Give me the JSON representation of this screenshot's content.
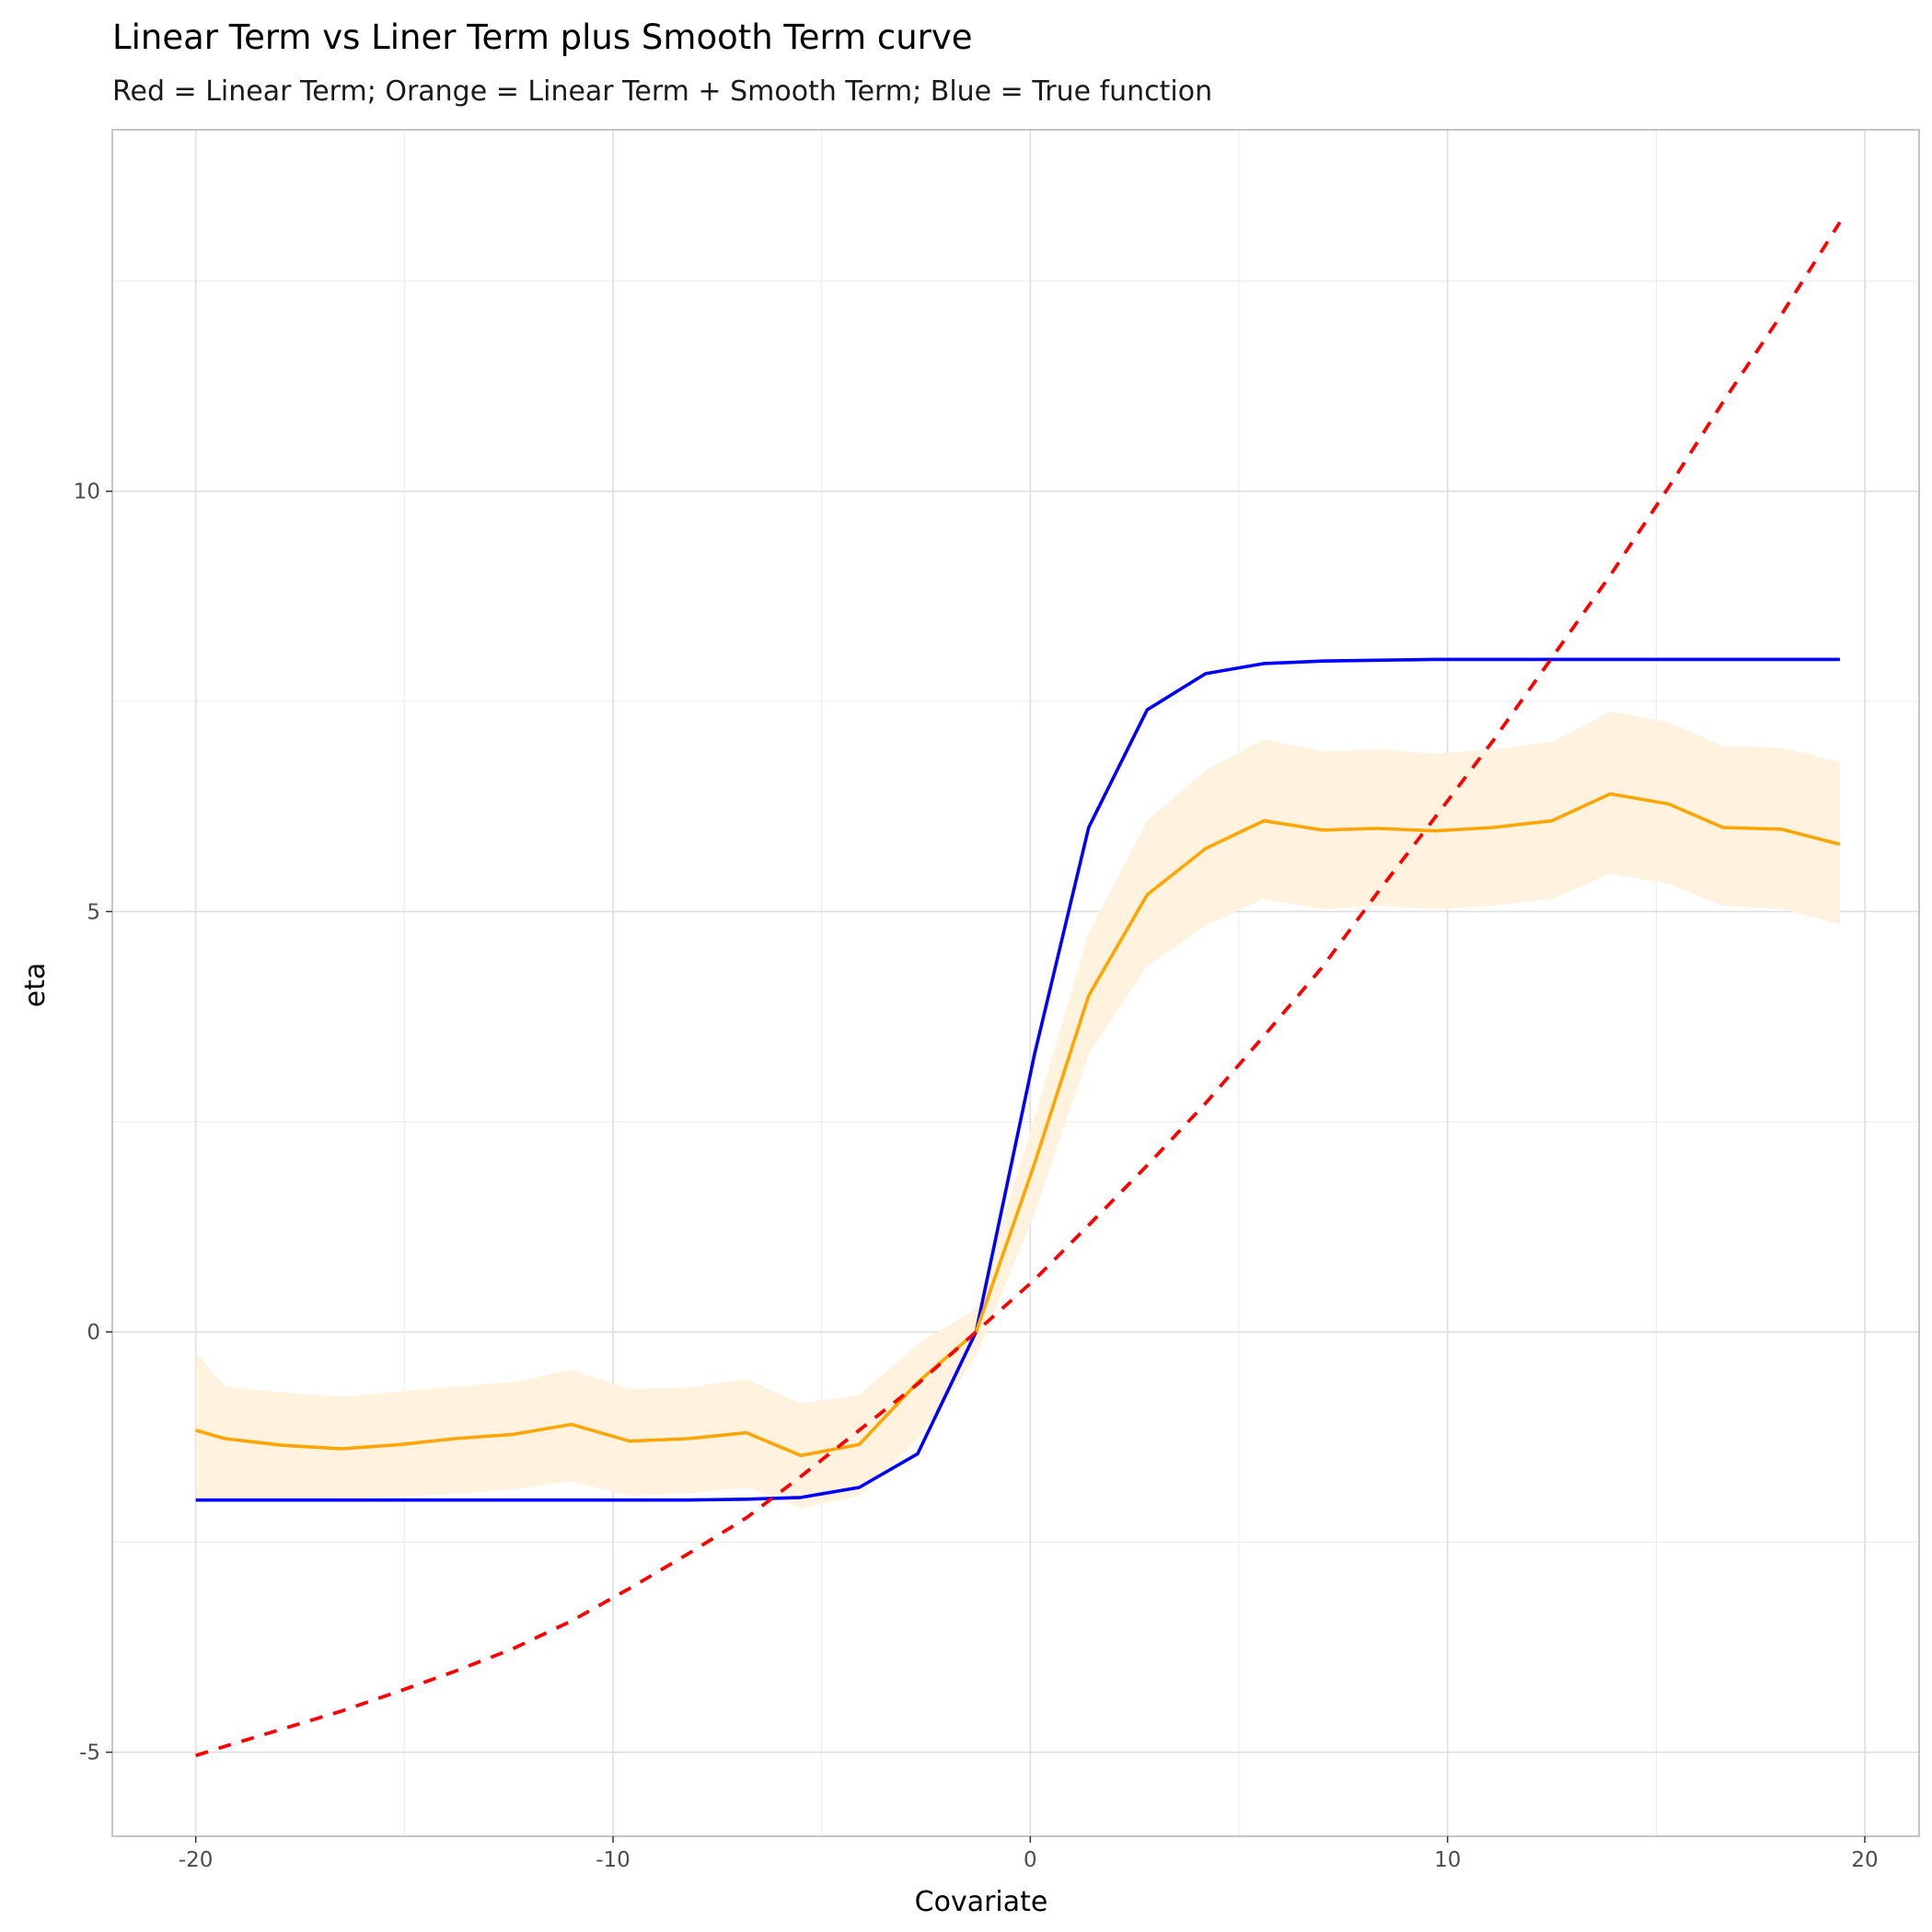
{
  "chart_data": {
    "type": "line",
    "title": "Linear Term vs Liner Term plus Smooth Term curve",
    "subtitle": "Red = Linear Term; Orange = Linear Term + Smooth Term; Blue = True function",
    "xlabel": "Covariate",
    "ylabel": "eta",
    "xlim": [
      -22,
      21.3
    ],
    "ylim": [
      -6,
      14.3
    ],
    "x_ticks": [
      -20,
      -10,
      0,
      10,
      20
    ],
    "y_ticks": [
      -5,
      0,
      5,
      10
    ],
    "x_tick_labels": [
      "-20",
      "-10",
      "0",
      "10",
      "20"
    ],
    "y_tick_labels": [
      "-5",
      "0",
      "5",
      "10"
    ],
    "grid": true,
    "colors": {
      "linear": "#ff0000",
      "smooth": "#ffa500",
      "band": "#fff3e0",
      "true": "#0000ff"
    },
    "x": [
      -20,
      -19.3,
      -17.9,
      -16.5,
      -15.1,
      -13.8,
      -12.4,
      -11.0,
      -9.6,
      -8.2,
      -6.8,
      -5.5,
      -4.1,
      -2.7,
      -1.3,
      0.1,
      1.4,
      2.8,
      4.2,
      5.6,
      7.0,
      8.3,
      9.7,
      11.1,
      12.5,
      13.9,
      15.3,
      16.6,
      18.0,
      19.4
    ],
    "series": [
      {
        "key": "true",
        "y": [
          -2.0,
          -2.0,
          -2.0,
          -2.0,
          -2.0,
          -2.0,
          -2.0,
          -2.0,
          -2.0,
          -2.0,
          -1.99,
          -1.97,
          -1.85,
          -1.45,
          0.0,
          3.3,
          6.0,
          7.4,
          7.83,
          7.95,
          7.98,
          7.99,
          8.0,
          8.0,
          8.0,
          8.0,
          8.0,
          8.0,
          8.0,
          8.0
        ]
      },
      {
        "key": "smooth",
        "y": [
          -1.17,
          -1.27,
          -1.35,
          -1.39,
          -1.34,
          -1.27,
          -1.22,
          -1.1,
          -1.3,
          -1.27,
          -1.2,
          -1.47,
          -1.34,
          -0.6,
          0.0,
          2.0,
          4.0,
          5.2,
          5.75,
          6.08,
          5.97,
          5.99,
          5.96,
          6.0,
          6.08,
          6.4,
          6.28,
          6.0,
          5.98,
          5.8
        ],
        "lower": [
          -1.97,
          -2.0,
          -2.0,
          -1.98,
          -1.96,
          -1.93,
          -1.87,
          -1.78,
          -1.95,
          -1.92,
          -1.85,
          -2.1,
          -1.95,
          -1.28,
          -0.3,
          1.4,
          3.3,
          4.35,
          4.83,
          5.15,
          5.03,
          5.07,
          5.03,
          5.07,
          5.15,
          5.45,
          5.33,
          5.07,
          5.03,
          4.85
        ],
        "upper": [
          -0.25,
          -0.65,
          -0.72,
          -0.77,
          -0.71,
          -0.65,
          -0.6,
          -0.45,
          -0.68,
          -0.66,
          -0.56,
          -0.85,
          -0.75,
          -0.15,
          0.28,
          2.55,
          4.75,
          6.08,
          6.68,
          7.05,
          6.9,
          6.93,
          6.88,
          6.93,
          7.02,
          7.38,
          7.25,
          6.97,
          6.95,
          6.78
        ]
      },
      {
        "key": "linear",
        "y": [
          -5.04,
          -4.93,
          -4.72,
          -4.51,
          -4.27,
          -4.04,
          -3.77,
          -3.44,
          -3.05,
          -2.64,
          -2.21,
          -1.72,
          -1.17,
          -0.62,
          0.0,
          0.62,
          1.27,
          1.98,
          2.72,
          3.52,
          4.34,
          5.21,
          6.12,
          7.04,
          8.02,
          9.0,
          10.05,
          11.06,
          12.1,
          13.2
        ]
      }
    ]
  }
}
